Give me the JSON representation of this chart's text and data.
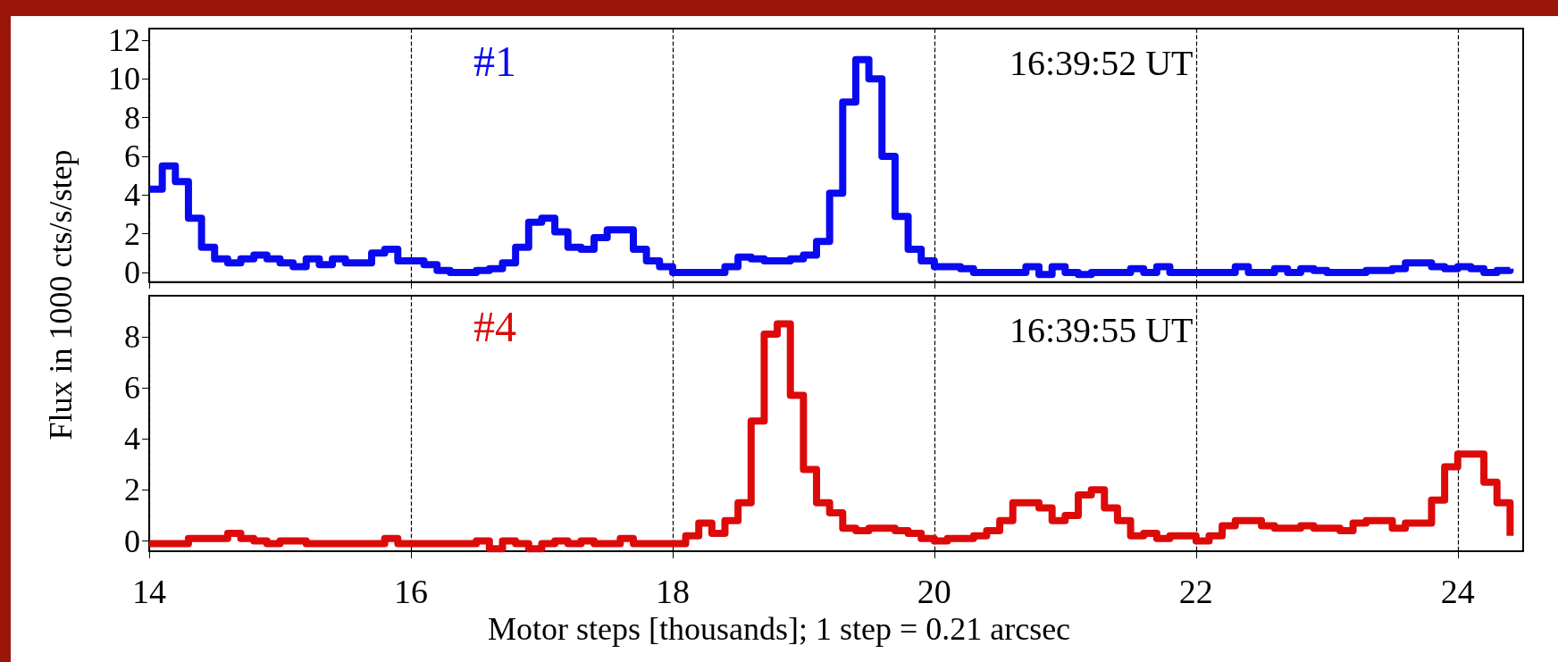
{
  "chart_data": [
    {
      "type": "step",
      "ylabel": "Flux in 1000 cts/s/step",
      "annotations": [
        "16:39:52 UT"
      ],
      "xlim": [
        14,
        24.5
      ],
      "xticks": [
        14,
        16,
        18,
        20,
        22,
        24
      ],
      "ylim": [
        -0.5,
        12.6
      ],
      "yticks": [
        0,
        2,
        4,
        6,
        8,
        10,
        12
      ],
      "grid": "x",
      "tick_labels": "y",
      "marker": "none",
      "line_style": "solid",
      "x": [
        14.0,
        14.1,
        14.2,
        14.3,
        14.4,
        14.5,
        14.6,
        14.7,
        14.8,
        14.9,
        15.0,
        15.1,
        15.2,
        15.3,
        15.4,
        15.5,
        15.6,
        15.7,
        15.8,
        15.9,
        16.0,
        16.1,
        16.2,
        16.3,
        16.4,
        16.5,
        16.6,
        16.7,
        16.8,
        16.9,
        17.0,
        17.1,
        17.2,
        17.3,
        17.4,
        17.5,
        17.6,
        17.7,
        17.8,
        17.9,
        18.0,
        18.1,
        18.2,
        18.3,
        18.4,
        18.5,
        18.6,
        18.7,
        18.8,
        18.9,
        19.0,
        19.1,
        19.2,
        19.3,
        19.4,
        19.5,
        19.6,
        19.7,
        19.8,
        19.9,
        20.0,
        20.1,
        20.2,
        20.3,
        20.4,
        20.5,
        20.6,
        20.7,
        20.8,
        20.9,
        21.0,
        21.1,
        21.2,
        21.3,
        21.4,
        21.5,
        21.6,
        21.7,
        21.8,
        21.9,
        22.0,
        22.1,
        22.2,
        22.3,
        22.4,
        22.5,
        22.6,
        22.7,
        22.8,
        22.9,
        23.0,
        23.1,
        23.2,
        23.3,
        23.4,
        23.5,
        23.6,
        23.7,
        23.8,
        23.9,
        24.0,
        24.1,
        24.2,
        24.3,
        24.4
      ],
      "series": [
        {
          "name": "#1",
          "color": "#0a0af0",
          "values": [
            4.3,
            5.5,
            4.7,
            2.8,
            1.3,
            0.7,
            0.5,
            0.7,
            0.9,
            0.7,
            0.5,
            0.3,
            0.7,
            0.4,
            0.7,
            0.5,
            0.5,
            1.0,
            1.2,
            0.6,
            0.6,
            0.4,
            0.1,
            0.0,
            0.0,
            0.1,
            0.2,
            0.5,
            1.3,
            2.6,
            2.8,
            2.1,
            1.3,
            1.2,
            1.8,
            2.2,
            2.2,
            1.2,
            0.6,
            0.3,
            0.0,
            0.0,
            0.0,
            0.0,
            0.3,
            0.8,
            0.7,
            0.6,
            0.6,
            0.7,
            0.9,
            1.6,
            4.1,
            8.8,
            11.0,
            10.0,
            6.0,
            2.9,
            1.2,
            0.6,
            0.3,
            0.3,
            0.2,
            0.0,
            0.0,
            0.0,
            0.0,
            0.3,
            -0.1,
            0.3,
            0.0,
            -0.1,
            0.0,
            0.0,
            0.0,
            0.2,
            0.0,
            0.3,
            0.0,
            0.0,
            0.0,
            0.0,
            0.0,
            0.3,
            0.0,
            0.0,
            0.2,
            0.0,
            0.2,
            0.1,
            0.0,
            0.0,
            0.0,
            0.1,
            0.1,
            0.2,
            0.5,
            0.5,
            0.3,
            0.2,
            0.3,
            0.2,
            0.0,
            0.1,
            0.2
          ]
        }
      ]
    },
    {
      "type": "step",
      "xlabel": "Motor steps [thousands]; 1 step = 0.21 arcsec",
      "annotations": [
        "16:39:55 UT"
      ],
      "xlim": [
        14,
        24.5
      ],
      "xticks": [
        14,
        16,
        18,
        20,
        22,
        24
      ],
      "ylim": [
        -0.4,
        9.6
      ],
      "yticks": [
        0,
        2,
        4,
        6,
        8
      ],
      "grid": "x",
      "marker": "none",
      "line_style": "solid",
      "x": [
        14.0,
        14.1,
        14.2,
        14.3,
        14.4,
        14.5,
        14.6,
        14.7,
        14.8,
        14.9,
        15.0,
        15.1,
        15.2,
        15.3,
        15.4,
        15.5,
        15.6,
        15.7,
        15.8,
        15.9,
        16.0,
        16.1,
        16.2,
        16.3,
        16.4,
        16.5,
        16.6,
        16.7,
        16.8,
        16.9,
        17.0,
        17.1,
        17.2,
        17.3,
        17.4,
        17.5,
        17.6,
        17.7,
        17.8,
        17.9,
        18.0,
        18.1,
        18.2,
        18.3,
        18.4,
        18.5,
        18.6,
        18.7,
        18.8,
        18.9,
        19.0,
        19.1,
        19.2,
        19.3,
        19.4,
        19.5,
        19.6,
        19.7,
        19.8,
        19.9,
        20.0,
        20.1,
        20.2,
        20.3,
        20.4,
        20.5,
        20.6,
        20.7,
        20.8,
        20.9,
        21.0,
        21.1,
        21.2,
        21.3,
        21.4,
        21.5,
        21.6,
        21.7,
        21.8,
        21.9,
        22.0,
        22.1,
        22.2,
        22.3,
        22.4,
        22.5,
        22.6,
        22.7,
        22.8,
        22.9,
        23.0,
        23.1,
        23.2,
        23.3,
        23.4,
        23.5,
        23.6,
        23.7,
        23.8,
        23.9,
        24.0,
        24.1,
        24.2,
        24.3,
        24.4
      ],
      "series": [
        {
          "name": "#4",
          "color": "#dd0a0a",
          "values": [
            -0.1,
            -0.1,
            -0.1,
            0.1,
            0.1,
            0.1,
            0.3,
            0.1,
            0.0,
            -0.1,
            0.0,
            0.0,
            -0.1,
            -0.1,
            -0.1,
            -0.1,
            -0.1,
            -0.1,
            0.1,
            -0.1,
            -0.1,
            -0.1,
            -0.1,
            -0.1,
            -0.1,
            0.0,
            -0.3,
            0.0,
            -0.1,
            -0.3,
            -0.1,
            0.0,
            -0.1,
            0.0,
            -0.1,
            -0.1,
            0.1,
            -0.1,
            -0.1,
            -0.1,
            -0.1,
            0.2,
            0.7,
            0.3,
            0.8,
            1.5,
            4.7,
            8.1,
            8.5,
            5.7,
            2.8,
            1.5,
            1.1,
            0.5,
            0.4,
            0.5,
            0.5,
            0.4,
            0.3,
            0.1,
            0.0,
            0.1,
            0.1,
            0.2,
            0.4,
            0.8,
            1.5,
            1.5,
            1.3,
            0.8,
            1.0,
            1.8,
            2.0,
            1.3,
            0.8,
            0.2,
            0.3,
            0.1,
            0.2,
            0.2,
            0.0,
            0.2,
            0.6,
            0.8,
            0.8,
            0.6,
            0.5,
            0.5,
            0.6,
            0.5,
            0.5,
            0.4,
            0.7,
            0.8,
            0.8,
            0.5,
            0.7,
            0.7,
            1.6,
            2.9,
            3.4,
            3.4,
            2.3,
            1.5,
            0.2
          ]
        }
      ]
    }
  ]
}
